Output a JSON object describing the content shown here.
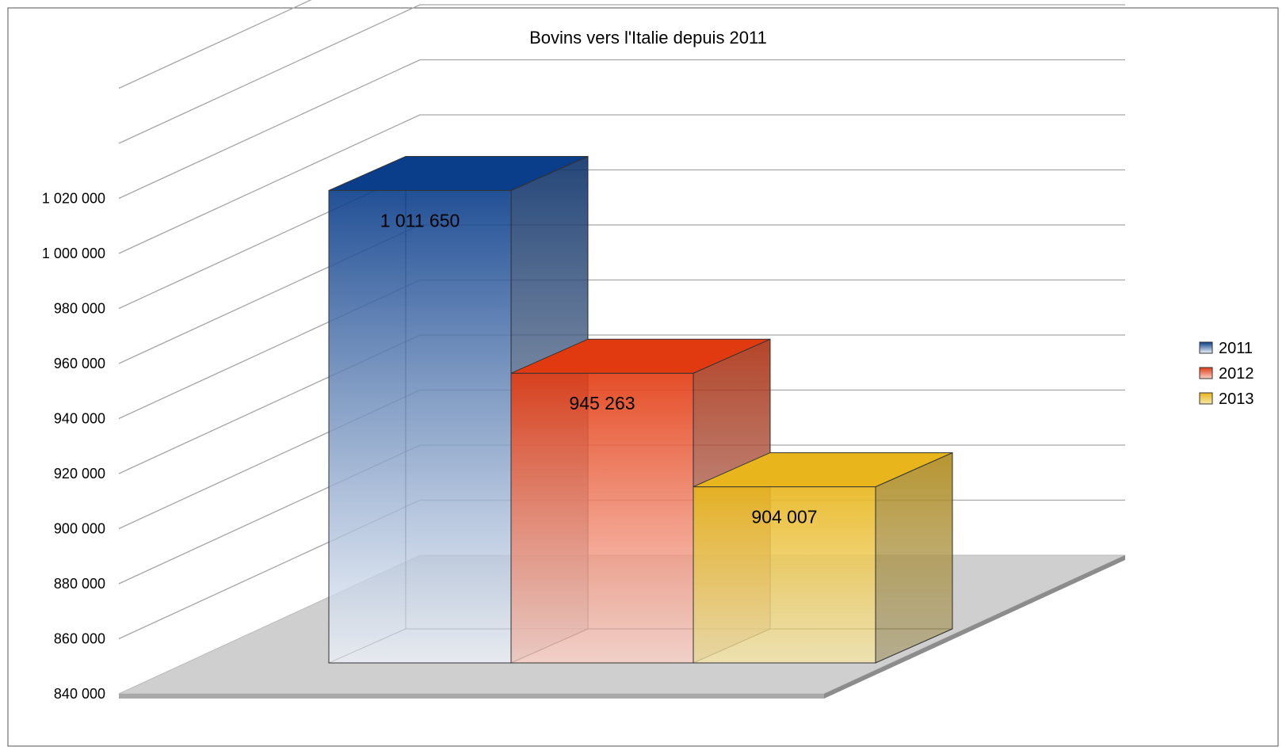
{
  "chart_data": {
    "type": "bar",
    "title": "Bovins vers l'Italie depuis 2011",
    "xlabel": "",
    "ylabel": "",
    "categories": [
      ""
    ],
    "series": [
      {
        "name": "2011",
        "values": [
          1011650
        ],
        "label": "1 011 650",
        "color_top": "#0a3d8a",
        "color_bottom": "#eef3fa"
      },
      {
        "name": "2012",
        "values": [
          945263
        ],
        "label": "945 263",
        "color_top": "#e23a10",
        "color_bottom": "#fbd0c6"
      },
      {
        "name": "2013",
        "values": [
          904007
        ],
        "label": "904 007",
        "color_top": "#e8b51c",
        "color_bottom": "#f6e6a6"
      }
    ],
    "ylim": [
      840000,
      1040000
    ],
    "y_ticks": [
      840000,
      860000,
      880000,
      900000,
      920000,
      940000,
      960000,
      980000,
      1000000,
      1020000
    ],
    "y_tick_labels": [
      "840 000",
      "860 000",
      "880 000",
      "900 000",
      "920 000",
      "940 000",
      "960 000",
      "980 000",
      "1 000 000",
      "1 020 000"
    ],
    "grid": true,
    "three_d": true,
    "legend": {
      "placement": "right",
      "entries": [
        "2011",
        "2012",
        "2013"
      ]
    }
  }
}
